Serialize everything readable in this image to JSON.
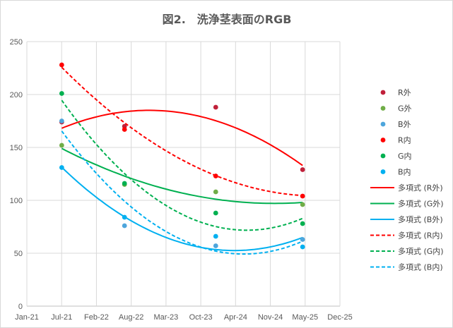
{
  "chart_data": {
    "type": "scatter",
    "title": "図2.　洗浄茎表面のRGB",
    "xlabel": "",
    "ylabel": "",
    "xlim": [
      "2021-01-01",
      "2025-12-01"
    ],
    "ylim": [
      0,
      250
    ],
    "x_ticks": [
      "Jan-21",
      "Jul-21",
      "Feb-22",
      "Aug-22",
      "Mar-23",
      "Oct-23",
      "Apr-24",
      "Nov-24",
      "May-25",
      "Dec-25"
    ],
    "y_ticks": [
      0,
      50,
      100,
      150,
      200,
      250
    ],
    "grid": true,
    "legend_position": "right",
    "x": [
      "2021-07-20",
      "2022-07-15",
      "2023-12-20",
      "2025-05-01"
    ],
    "series": [
      {
        "name": "R外",
        "color": "#c0203a",
        "values": [
          174,
          170,
          188,
          129
        ]
      },
      {
        "name": "G外",
        "color": "#70ad47",
        "values": [
          152,
          115,
          108,
          96
        ]
      },
      {
        "name": "B外",
        "color": "#4ea6dc",
        "values": [
          175,
          76,
          57,
          63
        ]
      },
      {
        "name": "R内",
        "color": "#ff0000",
        "values": [
          228,
          167,
          123,
          104
        ]
      },
      {
        "name": "G内",
        "color": "#00b050",
        "values": [
          201,
          116,
          88,
          78
        ]
      },
      {
        "name": "B内",
        "color": "#00b0f0",
        "values": [
          131,
          84,
          66,
          56
        ]
      }
    ],
    "trendlines": [
      {
        "name": "多項式 (R外)",
        "color": "#ff0000",
        "dash": false,
        "values": [
          168,
          184,
          175,
          133
        ]
      },
      {
        "name": "多項式 (G外)",
        "color": "#00b050",
        "dash": false,
        "values": [
          149,
          123,
          101,
          98
        ]
      },
      {
        "name": "多項式 (B外)",
        "color": "#00b0f0",
        "dash": false,
        "values": [
          131,
          85,
          53,
          65
        ]
      },
      {
        "name": "多項式 (R内)",
        "color": "#ff0000",
        "dash": true,
        "values": [
          225,
          175,
          122,
          105
        ]
      },
      {
        "name": "多項式 (G内)",
        "color": "#00b050",
        "dash": true,
        "values": [
          196,
          122,
          78,
          82
        ]
      },
      {
        "name": "多項式 (B内)",
        "color": "#00b0f0",
        "dash": true,
        "values": [
          166,
          98,
          53,
          61
        ]
      }
    ]
  }
}
